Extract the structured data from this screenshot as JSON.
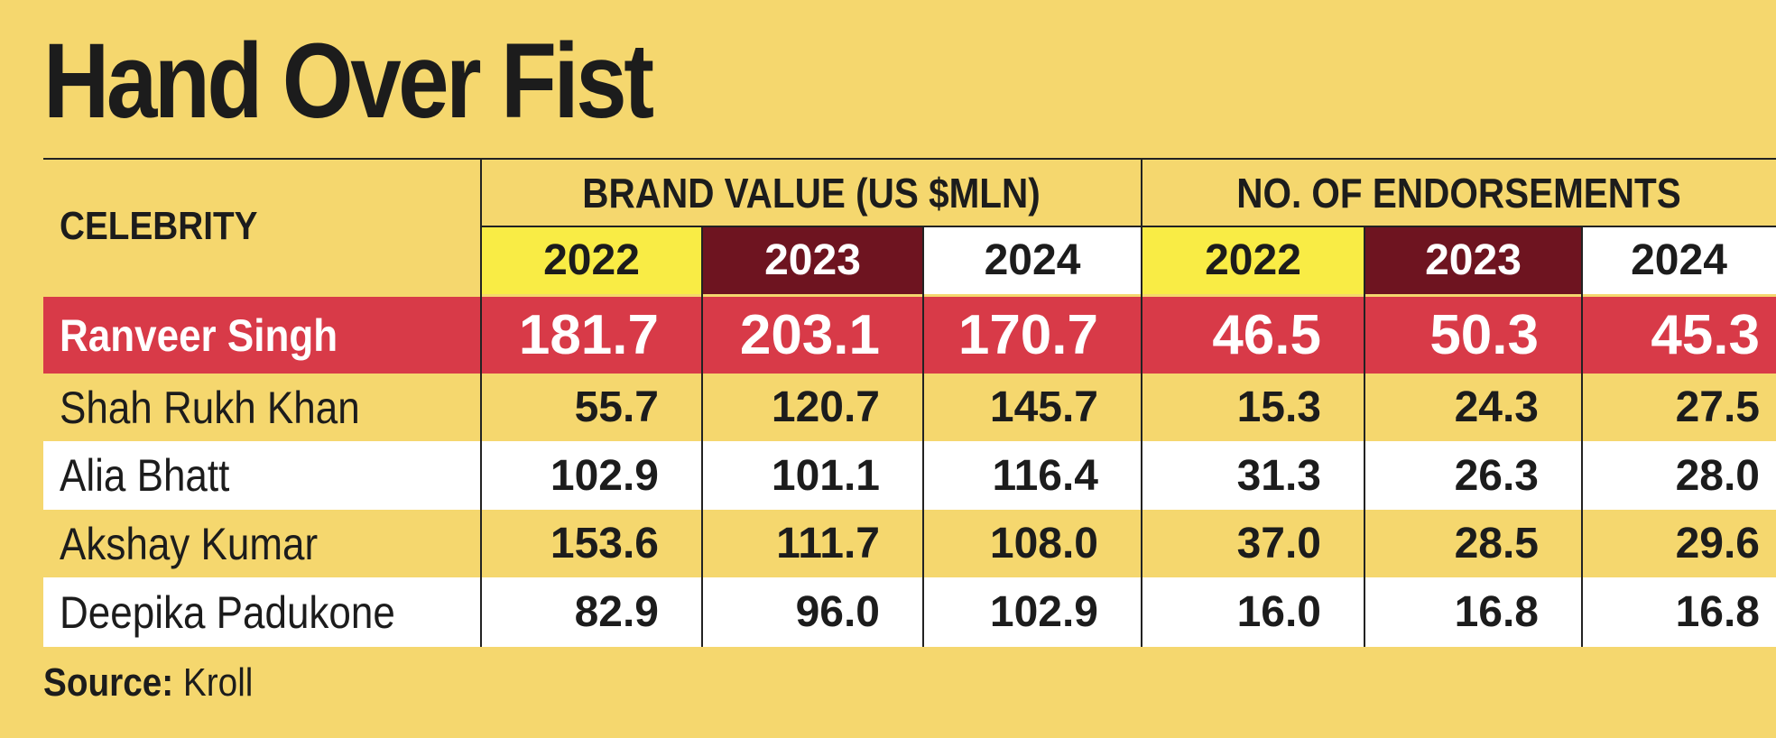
{
  "title": "Hand Over Fist",
  "table": {
    "header": {
      "celebrity": "CELEBRITY",
      "groups": [
        "BRAND VALUE (US $MLN)",
        "NO. OF ENDORSEMENTS"
      ],
      "years": [
        "2022",
        "2023",
        "2024",
        "2022",
        "2023",
        "2024"
      ]
    },
    "rows": [
      [
        "Ranveer Singh",
        "181.7",
        "203.1",
        "170.7",
        "46.5",
        "50.3",
        "45.3"
      ],
      [
        "Shah Rukh Khan",
        "55.7",
        "120.7",
        "145.7",
        "15.3",
        "24.3",
        "27.5"
      ],
      [
        "Alia Bhatt",
        "102.9",
        "101.1",
        "116.4",
        "31.3",
        "26.3",
        "28.0"
      ],
      [
        "Akshay Kumar",
        "153.6",
        "111.7",
        "108.0",
        "37.0",
        "28.5",
        "29.6"
      ],
      [
        "Deepika Padukone",
        "82.9",
        "96.0",
        "102.9",
        "16.0",
        "16.8",
        "16.8"
      ]
    ]
  },
  "source": {
    "label": "Source:",
    "text": "Kroll"
  }
}
